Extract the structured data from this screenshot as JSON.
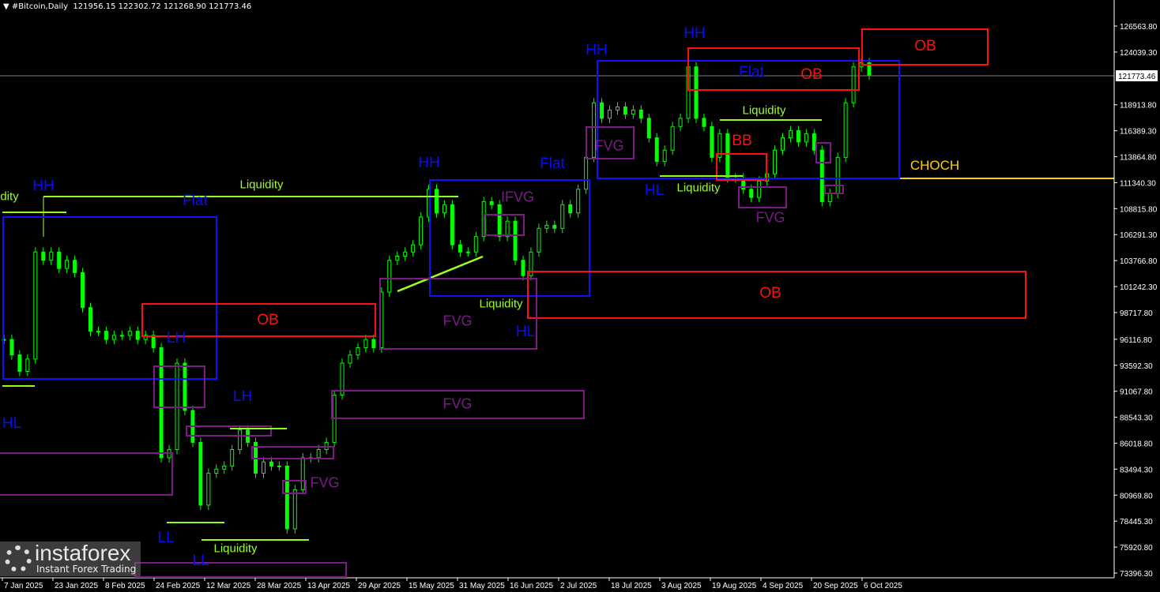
{
  "header": {
    "symbol": "#Bitcoin,Daily",
    "ohlc": "121956.15 122302.72 121268.90 121773.46"
  },
  "current_price_label": "121773.46",
  "labels": {
    "hh": "HH",
    "hl": "HL",
    "lh": "LH",
    "ll": "LL",
    "flat": "Flat",
    "ob": "OB",
    "bb": "BB",
    "fvg": "FVG",
    "ifvg": "IFVG",
    "liquidity": "Liquidity",
    "liquidity_cut": "dity",
    "choch": "CHOCH"
  },
  "watermark": {
    "brand": "instaforex",
    "tagline": "Instant Forex Trading"
  },
  "colors": {
    "candle": "#00ff00",
    "structure": "#0a0aff",
    "order_block": "#ff1010",
    "fvg": "#7e1a86",
    "liquidity": "#9cff2a",
    "choch": "#ffd000",
    "background": "#000000"
  },
  "chart_data": {
    "type": "candlestick",
    "title": "#Bitcoin,Daily",
    "ylim": [
      73396.3,
      126563.8
    ],
    "y_ticks": [
      "126563.80",
      "124039.30",
      "118913.80",
      "116389.30",
      "113864.80",
      "111340.30",
      "108815.80",
      "106291.30",
      "103766.80",
      "101242.30",
      "98717.80",
      "96116.80",
      "93592.30",
      "91067.80",
      "88543.30",
      "86018.80",
      "83494.30",
      "80969.80",
      "78445.30",
      "75920.80",
      "73396.30"
    ],
    "x_ticks": [
      "7 Jan 2025",
      "23 Jan 2025",
      "8 Feb 2025",
      "24 Feb 2025",
      "12 Mar 2025",
      "28 Mar 2025",
      "13 Apr 2025",
      "29 Apr 2025",
      "15 May 2025",
      "31 May 2025",
      "16 Jun 2025",
      "2 Jul 2025",
      "18 Jul 2025",
      "3 Aug 2025",
      "19 Aug 2025",
      "4 Sep 2025",
      "20 Sep 2025",
      "6 Oct 2025"
    ],
    "last_price": 121773.46,
    "approx_closes": [
      96100,
      94600,
      93000,
      94200,
      104600,
      103800,
      104600,
      103000,
      103800,
      102600,
      99200,
      96900,
      96900,
      96100,
      96500,
      96500,
      96900,
      96100,
      96500,
      95300,
      84600,
      85400,
      93800,
      89200,
      86100,
      80000,
      83100,
      83500,
      83800,
      85400,
      87300,
      86100,
      83100,
      84200,
      83800,
      83800,
      77700,
      81500,
      84600,
      84600,
      85400,
      86100,
      90700,
      93800,
      94600,
      95300,
      96100,
      95300,
      100700,
      103800,
      104200,
      104600,
      105300,
      108000,
      110700,
      108400,
      109200,
      105300,
      104600,
      104600,
      106100,
      109500,
      109200,
      106100,
      107600,
      103800,
      102300,
      104600,
      106900,
      107200,
      106900,
      109200,
      108400,
      110700,
      113800,
      119100,
      117600,
      118400,
      118700,
      118000,
      118400,
      117600,
      115700,
      113400,
      114500,
      116800,
      117600,
      122600,
      117600,
      116800,
      113800,
      116100,
      111800,
      111800,
      110700,
      109900,
      111500,
      112200,
      114500,
      115700,
      116400,
      115300,
      116100,
      114500,
      109500,
      110300,
      113800,
      119100,
      122600,
      123000,
      121800
    ]
  }
}
